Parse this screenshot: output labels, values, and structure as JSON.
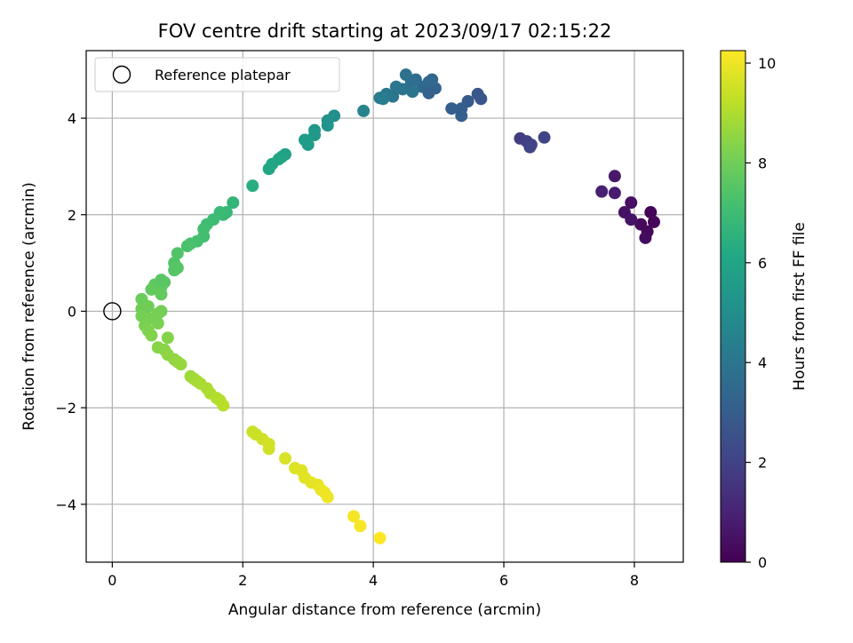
{
  "chart_data": {
    "type": "scatter",
    "title": "FOV centre drift starting at 2023/09/17 02:15:22",
    "xlabel": "Angular distance from reference (arcmin)",
    "ylabel": "Rotation from reference (arcmin)",
    "xlim": [
      -0.4,
      8.75
    ],
    "ylim": [
      -5.2,
      5.4
    ],
    "xticks": [
      0,
      2,
      4,
      6,
      8
    ],
    "yticks": [
      -4,
      -2,
      0,
      2,
      4
    ],
    "grid": true,
    "legend": {
      "position": "top-left",
      "entries": [
        "Reference platepar"
      ]
    },
    "reference_point": {
      "x": 0,
      "y": 0,
      "label": "Reference platepar"
    },
    "colorbar": {
      "label": "Hours from first FF file",
      "min": 0,
      "max": 10.25,
      "ticks": [
        0,
        2,
        4,
        6,
        8,
        10
      ],
      "colormap": "viridis"
    },
    "points": [
      {
        "x": 8.25,
        "y": 2.05,
        "c": 0.1
      },
      {
        "x": 8.3,
        "y": 1.85,
        "c": 0.15
      },
      {
        "x": 8.2,
        "y": 1.65,
        "c": 0.2
      },
      {
        "x": 8.1,
        "y": 1.8,
        "c": 0.25
      },
      {
        "x": 8.17,
        "y": 1.52,
        "c": 0.3
      },
      {
        "x": 7.95,
        "y": 2.25,
        "c": 0.4
      },
      {
        "x": 7.85,
        "y": 2.05,
        "c": 0.5
      },
      {
        "x": 7.95,
        "y": 1.9,
        "c": 0.55
      },
      {
        "x": 7.7,
        "y": 2.8,
        "c": 0.7
      },
      {
        "x": 7.7,
        "y": 2.45,
        "c": 0.8
      },
      {
        "x": 7.5,
        "y": 2.48,
        "c": 0.9
      },
      {
        "x": 6.25,
        "y": 3.58,
        "c": 1.8
      },
      {
        "x": 6.35,
        "y": 3.52,
        "c": 1.9
      },
      {
        "x": 6.42,
        "y": 3.45,
        "c": 2.0
      },
      {
        "x": 6.4,
        "y": 3.4,
        "c": 2.05
      },
      {
        "x": 6.62,
        "y": 3.6,
        "c": 2.1
      },
      {
        "x": 5.65,
        "y": 4.4,
        "c": 2.7
      },
      {
        "x": 5.6,
        "y": 4.5,
        "c": 2.8
      },
      {
        "x": 5.45,
        "y": 4.35,
        "c": 2.9
      },
      {
        "x": 5.35,
        "y": 4.2,
        "c": 3.0
      },
      {
        "x": 5.2,
        "y": 4.2,
        "c": 3.0
      },
      {
        "x": 5.35,
        "y": 4.05,
        "c": 3.1
      },
      {
        "x": 4.95,
        "y": 4.62,
        "c": 3.3
      },
      {
        "x": 4.9,
        "y": 4.8,
        "c": 3.4
      },
      {
        "x": 4.85,
        "y": 4.75,
        "c": 3.45
      },
      {
        "x": 4.75,
        "y": 4.65,
        "c": 3.5
      },
      {
        "x": 4.65,
        "y": 4.8,
        "c": 3.6
      },
      {
        "x": 4.58,
        "y": 4.75,
        "c": 3.7
      },
      {
        "x": 4.5,
        "y": 4.9,
        "c": 3.8
      },
      {
        "x": 4.45,
        "y": 4.6,
        "c": 3.9
      },
      {
        "x": 4.35,
        "y": 4.65,
        "c": 4.0
      },
      {
        "x": 4.3,
        "y": 4.45,
        "c": 4.0
      },
      {
        "x": 4.2,
        "y": 4.5,
        "c": 4.1
      },
      {
        "x": 4.1,
        "y": 4.42,
        "c": 4.2
      },
      {
        "x": 4.85,
        "y": 4.52,
        "c": 3.2
      },
      {
        "x": 4.6,
        "y": 4.55,
        "c": 3.9
      },
      {
        "x": 4.15,
        "y": 4.4,
        "c": 4.3
      },
      {
        "x": 3.85,
        "y": 4.15,
        "c": 4.6
      },
      {
        "x": 3.4,
        "y": 4.05,
        "c": 5.1
      },
      {
        "x": 3.3,
        "y": 3.95,
        "c": 5.2
      },
      {
        "x": 3.3,
        "y": 3.85,
        "c": 5.3
      },
      {
        "x": 3.1,
        "y": 3.75,
        "c": 5.4
      },
      {
        "x": 3.1,
        "y": 3.65,
        "c": 5.5
      },
      {
        "x": 3.0,
        "y": 3.45,
        "c": 5.6
      },
      {
        "x": 2.95,
        "y": 3.55,
        "c": 5.6
      },
      {
        "x": 2.65,
        "y": 3.25,
        "c": 5.8
      },
      {
        "x": 2.6,
        "y": 3.2,
        "c": 5.9
      },
      {
        "x": 2.55,
        "y": 3.15,
        "c": 6.0
      },
      {
        "x": 2.45,
        "y": 3.05,
        "c": 6.0
      },
      {
        "x": 2.4,
        "y": 2.95,
        "c": 6.1
      },
      {
        "x": 2.15,
        "y": 2.6,
        "c": 6.4
      },
      {
        "x": 1.85,
        "y": 2.25,
        "c": 6.7
      },
      {
        "x": 1.75,
        "y": 2.05,
        "c": 6.8
      },
      {
        "x": 1.7,
        "y": 2.0,
        "c": 6.85
      },
      {
        "x": 1.65,
        "y": 2.05,
        "c": 6.9
      },
      {
        "x": 1.55,
        "y": 1.9,
        "c": 7.0
      },
      {
        "x": 1.45,
        "y": 1.8,
        "c": 7.05
      },
      {
        "x": 1.4,
        "y": 1.7,
        "c": 7.1
      },
      {
        "x": 1.4,
        "y": 1.55,
        "c": 7.15
      },
      {
        "x": 1.3,
        "y": 1.45,
        "c": 7.2
      },
      {
        "x": 1.2,
        "y": 1.4,
        "c": 7.25
      },
      {
        "x": 1.15,
        "y": 1.35,
        "c": 7.3
      },
      {
        "x": 1.0,
        "y": 1.2,
        "c": 7.4
      },
      {
        "x": 0.95,
        "y": 1.0,
        "c": 7.45
      },
      {
        "x": 0.95,
        "y": 0.85,
        "c": 7.5
      },
      {
        "x": 1.0,
        "y": 0.9,
        "c": 7.5
      },
      {
        "x": 0.8,
        "y": 0.6,
        "c": 7.6
      },
      {
        "x": 0.75,
        "y": 0.5,
        "c": 7.65
      },
      {
        "x": 0.65,
        "y": 0.55,
        "c": 7.7
      },
      {
        "x": 0.6,
        "y": 0.45,
        "c": 7.75
      },
      {
        "x": 0.75,
        "y": 0.35,
        "c": 7.8
      },
      {
        "x": 0.75,
        "y": 0.65,
        "c": 7.6
      },
      {
        "x": 0.45,
        "y": 0.25,
        "c": 7.9
      },
      {
        "x": 0.45,
        "y": 0.05,
        "c": 8.0
      },
      {
        "x": 0.5,
        "y": -0.05,
        "c": 8.05
      },
      {
        "x": 0.45,
        "y": -0.1,
        "c": 8.1
      },
      {
        "x": 0.55,
        "y": 0.1,
        "c": 8.0
      },
      {
        "x": 0.6,
        "y": -0.15,
        "c": 8.15
      },
      {
        "x": 0.5,
        "y": -0.3,
        "c": 8.2
      },
      {
        "x": 0.55,
        "y": -0.4,
        "c": 8.25
      },
      {
        "x": 0.6,
        "y": -0.5,
        "c": 8.3
      },
      {
        "x": 0.7,
        "y": -0.25,
        "c": 8.2
      },
      {
        "x": 0.75,
        "y": 0.0,
        "c": 8.05
      },
      {
        "x": 0.7,
        "y": -0.05,
        "c": 8.1
      },
      {
        "x": 0.65,
        "y": -0.15,
        "c": 8.15
      },
      {
        "x": 0.7,
        "y": -0.75,
        "c": 8.4
      },
      {
        "x": 0.85,
        "y": -0.55,
        "c": 8.35
      },
      {
        "x": 0.8,
        "y": -0.8,
        "c": 8.45
      },
      {
        "x": 0.85,
        "y": -0.9,
        "c": 8.5
      },
      {
        "x": 0.95,
        "y": -1.0,
        "c": 8.55
      },
      {
        "x": 1.0,
        "y": -1.05,
        "c": 8.6
      },
      {
        "x": 1.05,
        "y": -1.1,
        "c": 8.65
      },
      {
        "x": 1.2,
        "y": -1.35,
        "c": 8.75
      },
      {
        "x": 1.25,
        "y": -1.4,
        "c": 8.8
      },
      {
        "x": 1.3,
        "y": -1.45,
        "c": 8.85
      },
      {
        "x": 1.35,
        "y": -1.5,
        "c": 8.9
      },
      {
        "x": 1.45,
        "y": -1.6,
        "c": 8.95
      },
      {
        "x": 1.5,
        "y": -1.7,
        "c": 9.0
      },
      {
        "x": 1.6,
        "y": -1.8,
        "c": 9.05
      },
      {
        "x": 1.65,
        "y": -1.85,
        "c": 9.1
      },
      {
        "x": 1.7,
        "y": -1.95,
        "c": 9.15
      },
      {
        "x": 2.15,
        "y": -2.5,
        "c": 9.4
      },
      {
        "x": 2.2,
        "y": -2.55,
        "c": 9.45
      },
      {
        "x": 2.3,
        "y": -2.65,
        "c": 9.5
      },
      {
        "x": 2.4,
        "y": -2.75,
        "c": 9.55
      },
      {
        "x": 2.4,
        "y": -2.85,
        "c": 9.55
      },
      {
        "x": 2.65,
        "y": -3.05,
        "c": 9.65
      },
      {
        "x": 2.8,
        "y": -3.25,
        "c": 9.7
      },
      {
        "x": 2.9,
        "y": -3.3,
        "c": 9.75
      },
      {
        "x": 2.95,
        "y": -3.45,
        "c": 9.8
      },
      {
        "x": 3.05,
        "y": -3.55,
        "c": 9.85
      },
      {
        "x": 3.15,
        "y": -3.6,
        "c": 9.9
      },
      {
        "x": 3.2,
        "y": -3.7,
        "c": 9.95
      },
      {
        "x": 3.25,
        "y": -3.75,
        "c": 10.0
      },
      {
        "x": 3.3,
        "y": -3.85,
        "c": 10.0
      },
      {
        "x": 3.7,
        "y": -4.25,
        "c": 10.1
      },
      {
        "x": 3.8,
        "y": -4.45,
        "c": 10.15
      },
      {
        "x": 4.1,
        "y": -4.7,
        "c": 10.25
      }
    ]
  }
}
